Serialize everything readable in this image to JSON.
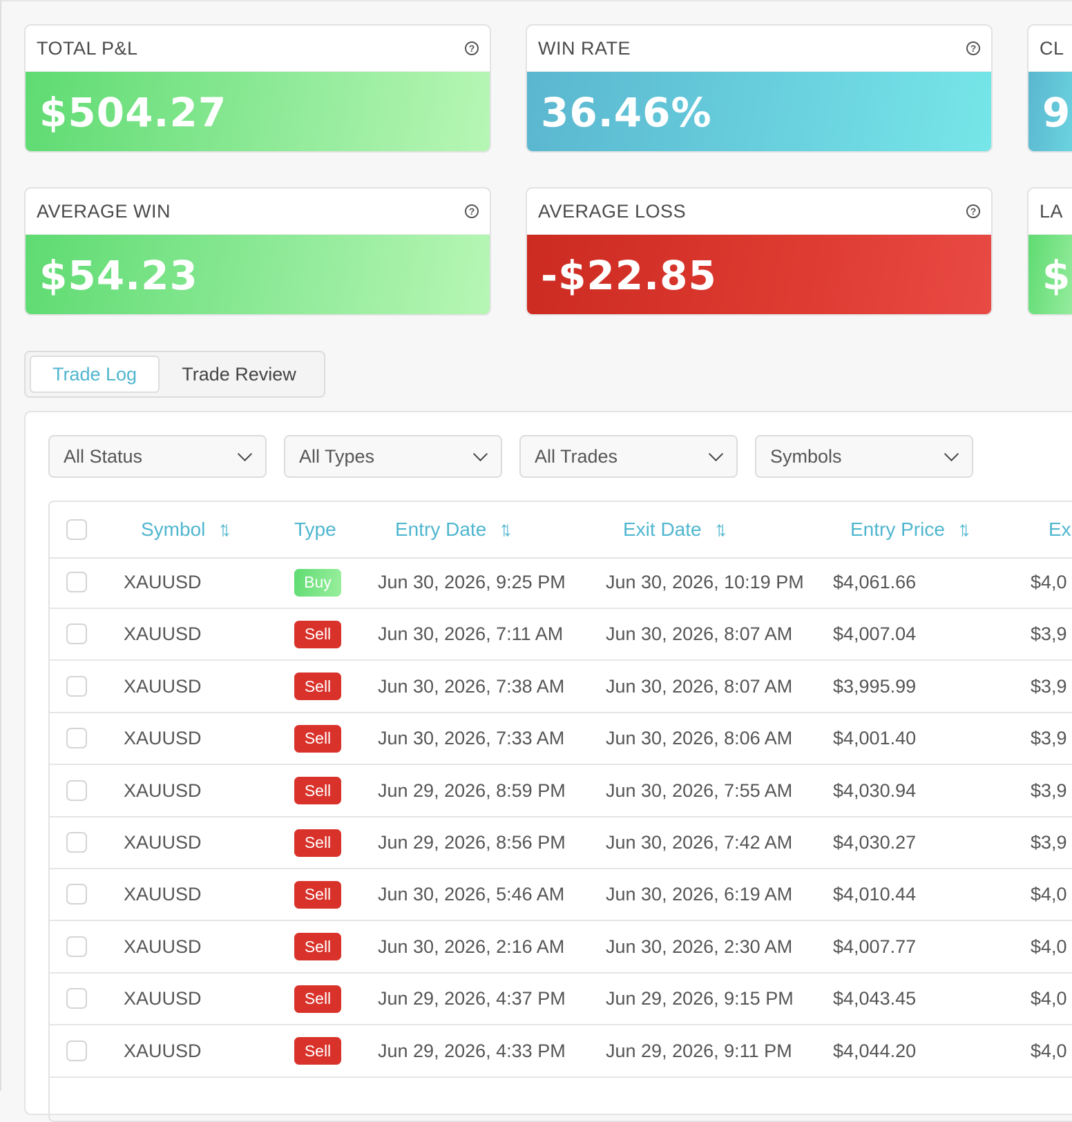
{
  "stats": {
    "total_pl": {
      "label": "TOTAL P&L",
      "value": "$504.27"
    },
    "win_rate": {
      "label": "WIN RATE",
      "value": "36.46%"
    },
    "third": {
      "label": "CL",
      "value": "9"
    },
    "average_win": {
      "label": "AVERAGE WIN",
      "value": "$54.23"
    },
    "average_loss": {
      "label": "AVERAGE LOSS",
      "value": "-$22.85"
    },
    "sixth": {
      "label": "LA",
      "value": "$"
    },
    "help_glyph": "?"
  },
  "tabs": [
    {
      "label": "Trade Log",
      "active": true
    },
    {
      "label": "Trade Review",
      "active": false
    }
  ],
  "filters": [
    {
      "label": "All Status"
    },
    {
      "label": "All Types"
    },
    {
      "label": "All Trades"
    },
    {
      "label": "Symbols"
    }
  ],
  "table": {
    "headers": {
      "symbol": "Symbol",
      "type": "Type",
      "entry_date": "Entry Date",
      "exit_date": "Exit Date",
      "entry_price": "Entry Price",
      "exit_price": "Ex"
    },
    "sort_glyph": "↑↓",
    "rows": [
      {
        "symbol": "XAUUSD",
        "type": "Buy",
        "entry_date": "Jun 30, 2026, 9:25 PM",
        "exit_date": "Jun 30, 2026, 10:19 PM",
        "entry_price": "$4,061.66",
        "exit_price": "$4,0"
      },
      {
        "symbol": "XAUUSD",
        "type": "Sell",
        "entry_date": "Jun 30, 2026, 7:11 AM",
        "exit_date": "Jun 30, 2026, 8:07 AM",
        "entry_price": "$4,007.04",
        "exit_price": "$3,9"
      },
      {
        "symbol": "XAUUSD",
        "type": "Sell",
        "entry_date": "Jun 30, 2026, 7:38 AM",
        "exit_date": "Jun 30, 2026, 8:07 AM",
        "entry_price": "$3,995.99",
        "exit_price": "$3,9"
      },
      {
        "symbol": "XAUUSD",
        "type": "Sell",
        "entry_date": "Jun 30, 2026, 7:33 AM",
        "exit_date": "Jun 30, 2026, 8:06 AM",
        "entry_price": "$4,001.40",
        "exit_price": "$3,9"
      },
      {
        "symbol": "XAUUSD",
        "type": "Sell",
        "entry_date": "Jun 29, 2026, 8:59 PM",
        "exit_date": "Jun 30, 2026, 7:55 AM",
        "entry_price": "$4,030.94",
        "exit_price": "$3,9"
      },
      {
        "symbol": "XAUUSD",
        "type": "Sell",
        "entry_date": "Jun 29, 2026, 8:56 PM",
        "exit_date": "Jun 30, 2026, 7:42 AM",
        "entry_price": "$4,030.27",
        "exit_price": "$3,9"
      },
      {
        "symbol": "XAUUSD",
        "type": "Sell",
        "entry_date": "Jun 30, 2026, 5:46 AM",
        "exit_date": "Jun 30, 2026, 6:19 AM",
        "entry_price": "$4,010.44",
        "exit_price": "$4,0"
      },
      {
        "symbol": "XAUUSD",
        "type": "Sell",
        "entry_date": "Jun 30, 2026, 2:16 AM",
        "exit_date": "Jun 30, 2026, 2:30 AM",
        "entry_price": "$4,007.77",
        "exit_price": "$4,0"
      },
      {
        "symbol": "XAUUSD",
        "type": "Sell",
        "entry_date": "Jun 29, 2026, 4:37 PM",
        "exit_date": "Jun 29, 2026, 9:15 PM",
        "entry_price": "$4,043.45",
        "exit_price": "$4,0"
      },
      {
        "symbol": "XAUUSD",
        "type": "Sell",
        "entry_date": "Jun 29, 2026, 4:33 PM",
        "exit_date": "Jun 29, 2026, 9:11 PM",
        "entry_price": "$4,044.20",
        "exit_price": "$4,0"
      }
    ]
  },
  "colors": {
    "accent": "#4fb6cf",
    "profit_green": "#5fdb72",
    "win_rate_blue": "#5ab6cf",
    "loss_red": "#d9322a"
  }
}
